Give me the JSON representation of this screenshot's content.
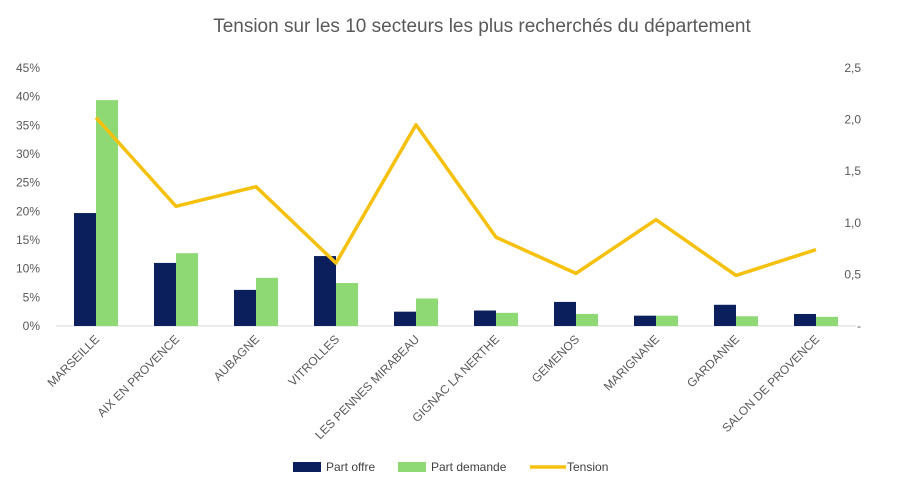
{
  "chart_data": {
    "type": "bar",
    "title": "Tension sur les 10 secteurs les plus recherchés du département",
    "categories": [
      "MARSEILLE",
      "AIX EN PROVENCE",
      "AUBAGNE",
      "VITROLLES",
      "LES PENNES MIRABEAU",
      "GIGNAC LA NERTHE",
      "GEMENOS",
      "MARIGNANE",
      "GARDANNE",
      "SALON DE PROVENCE"
    ],
    "series": [
      {
        "name": "Part offre",
        "type": "bar",
        "axis": "left",
        "color": "#0b1f5c",
        "values": [
          19.7,
          11.0,
          6.3,
          12.2,
          2.5,
          2.7,
          4.2,
          1.8,
          3.7,
          2.1
        ]
      },
      {
        "name": "Part demande",
        "type": "bar",
        "axis": "left",
        "color": "#8fd975",
        "values": [
          39.4,
          12.7,
          8.4,
          7.5,
          4.8,
          2.3,
          2.1,
          1.8,
          1.7,
          1.6
        ]
      },
      {
        "name": "Tension",
        "type": "line",
        "axis": "right",
        "color": "#f5c10e",
        "values": [
          2.02,
          1.16,
          1.35,
          0.61,
          1.95,
          0.86,
          0.51,
          1.03,
          0.49,
          0.74
        ]
      }
    ],
    "y_left": {
      "ylim": [
        0,
        45
      ],
      "ticks": [
        "0%",
        "5%",
        "10%",
        "15%",
        "20%",
        "25%",
        "30%",
        "35%",
        "40%",
        "45%"
      ]
    },
    "y_right": {
      "ylim": [
        0,
        2.5
      ],
      "ticks": [
        "-",
        "0,5",
        "1,0",
        "1,5",
        "2,0",
        "2,5"
      ]
    },
    "grid": false,
    "legend_position": "bottom"
  }
}
